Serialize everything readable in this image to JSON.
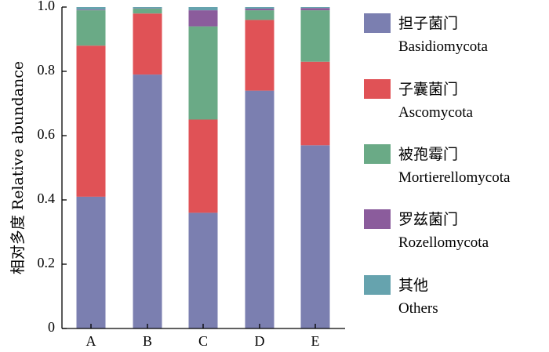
{
  "chart_data": {
    "type": "bar",
    "stacked": true,
    "ylabel": "相对多度 Relative abundance",
    "ylim": [
      0,
      1.0
    ],
    "yticks": [
      "0",
      "0.2",
      "0.4",
      "0.6",
      "0.8",
      "1.0"
    ],
    "categories": [
      "A",
      "B",
      "C",
      "D",
      "E"
    ],
    "series": [
      {
        "name": "担子菌门",
        "name_en": "Basidiomycota",
        "color": "#7b7fb0",
        "values": [
          0.41,
          0.79,
          0.36,
          0.74,
          0.57
        ]
      },
      {
        "name": "子囊菌门",
        "name_en": "Ascomycota",
        "color": "#e05256",
        "values": [
          0.47,
          0.19,
          0.29,
          0.22,
          0.26
        ]
      },
      {
        "name": "被孢霉门",
        "name_en": "Mortierellomycota",
        "color": "#6aaa86",
        "values": [
          0.11,
          0.015,
          0.29,
          0.03,
          0.16
        ]
      },
      {
        "name": "罗兹菌门",
        "name_en": "Rozellomycota",
        "color": "#8b5c9c",
        "values": [
          0.002,
          0.001,
          0.05,
          0.005,
          0.007
        ]
      },
      {
        "name": "其他",
        "name_en": "Others",
        "color": "#66a3ae",
        "values": [
          0.008,
          0.004,
          0.01,
          0.005,
          0.003
        ]
      }
    ],
    "legend_position": "right"
  }
}
